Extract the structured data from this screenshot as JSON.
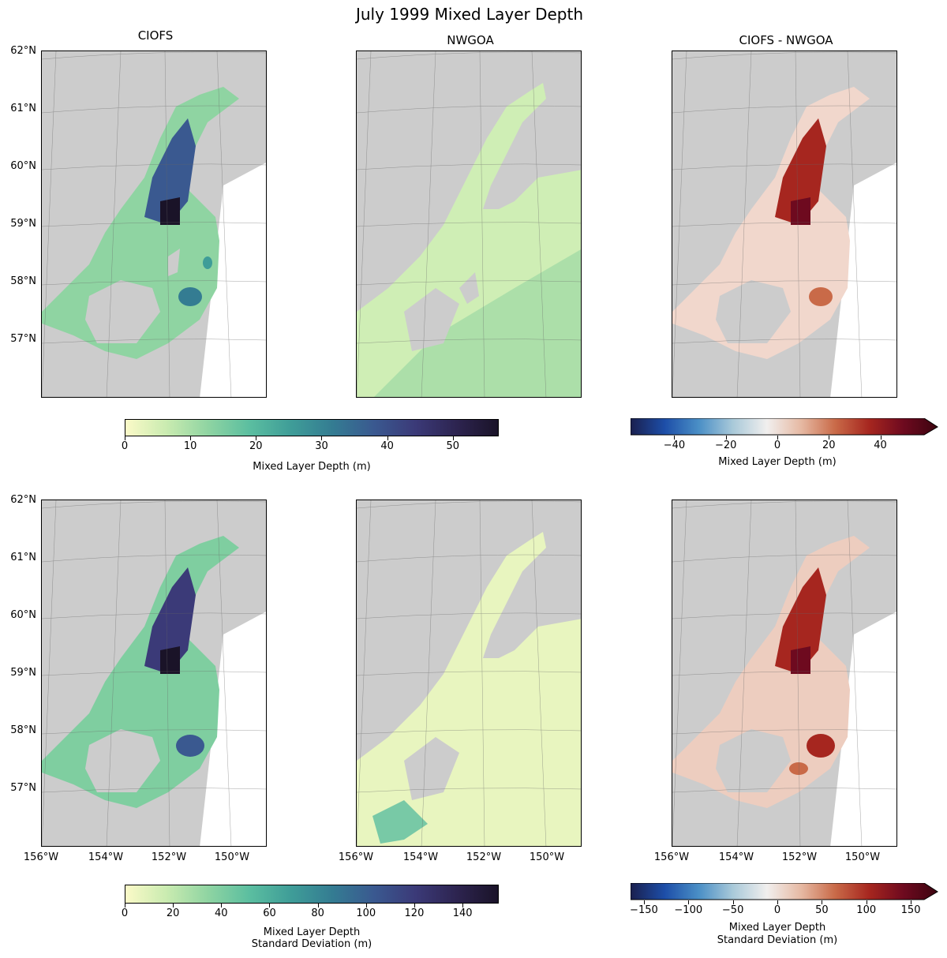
{
  "title": "July 1999 Mixed Layer Depth",
  "columns": [
    "CIOFS",
    "NWGOA",
    "CIOFS - NWGOA"
  ],
  "lat_labels": [
    "62°N",
    "61°N",
    "60°N",
    "59°N",
    "58°N",
    "57°N"
  ],
  "lon_labels": [
    "156°W",
    "154°W",
    "152°W",
    "150°W"
  ],
  "colorbars": {
    "top_seq": {
      "label": "Mixed Layer Depth (m)",
      "ticks": [
        "0",
        "10",
        "20",
        "30",
        "40",
        "50"
      ],
      "vmin": 0,
      "vmax": 57
    },
    "top_div": {
      "label": "Mixed Layer Depth (m)",
      "ticks": [
        "−40",
        "−20",
        "0",
        "20",
        "40"
      ],
      "vmin": -57,
      "vmax": 57
    },
    "bot_seq": {
      "label_line1": "Mixed Layer Depth",
      "label_line2": "Standard Deviation (m)",
      "ticks": [
        "0",
        "20",
        "40",
        "60",
        "80",
        "100",
        "120",
        "140"
      ],
      "vmin": 0,
      "vmax": 155
    },
    "bot_div": {
      "label_line1": "Mixed Layer Depth",
      "label_line2": "Standard Deviation (m)",
      "ticks": [
        "−150",
        "−100",
        "−50",
        "0",
        "50",
        "100",
        "150"
      ],
      "vmin": -165,
      "vmax": 165
    }
  },
  "colors": {
    "land": "#cccccc",
    "seq_cmap": [
      "#fbfac8",
      "#c9ebb0",
      "#8fd4a2",
      "#5bbea0",
      "#3f9d98",
      "#347c92",
      "#3a5990",
      "#3b3a78",
      "#2d2450",
      "#1a1328"
    ],
    "div_cmap": [
      "#1a1f4e",
      "#1d4ea8",
      "#4a8fc6",
      "#a9c9d9",
      "#f1efee",
      "#e6b9a3",
      "#c96a48",
      "#a6261f",
      "#6e0a1f",
      "#3c0410"
    ]
  }
}
